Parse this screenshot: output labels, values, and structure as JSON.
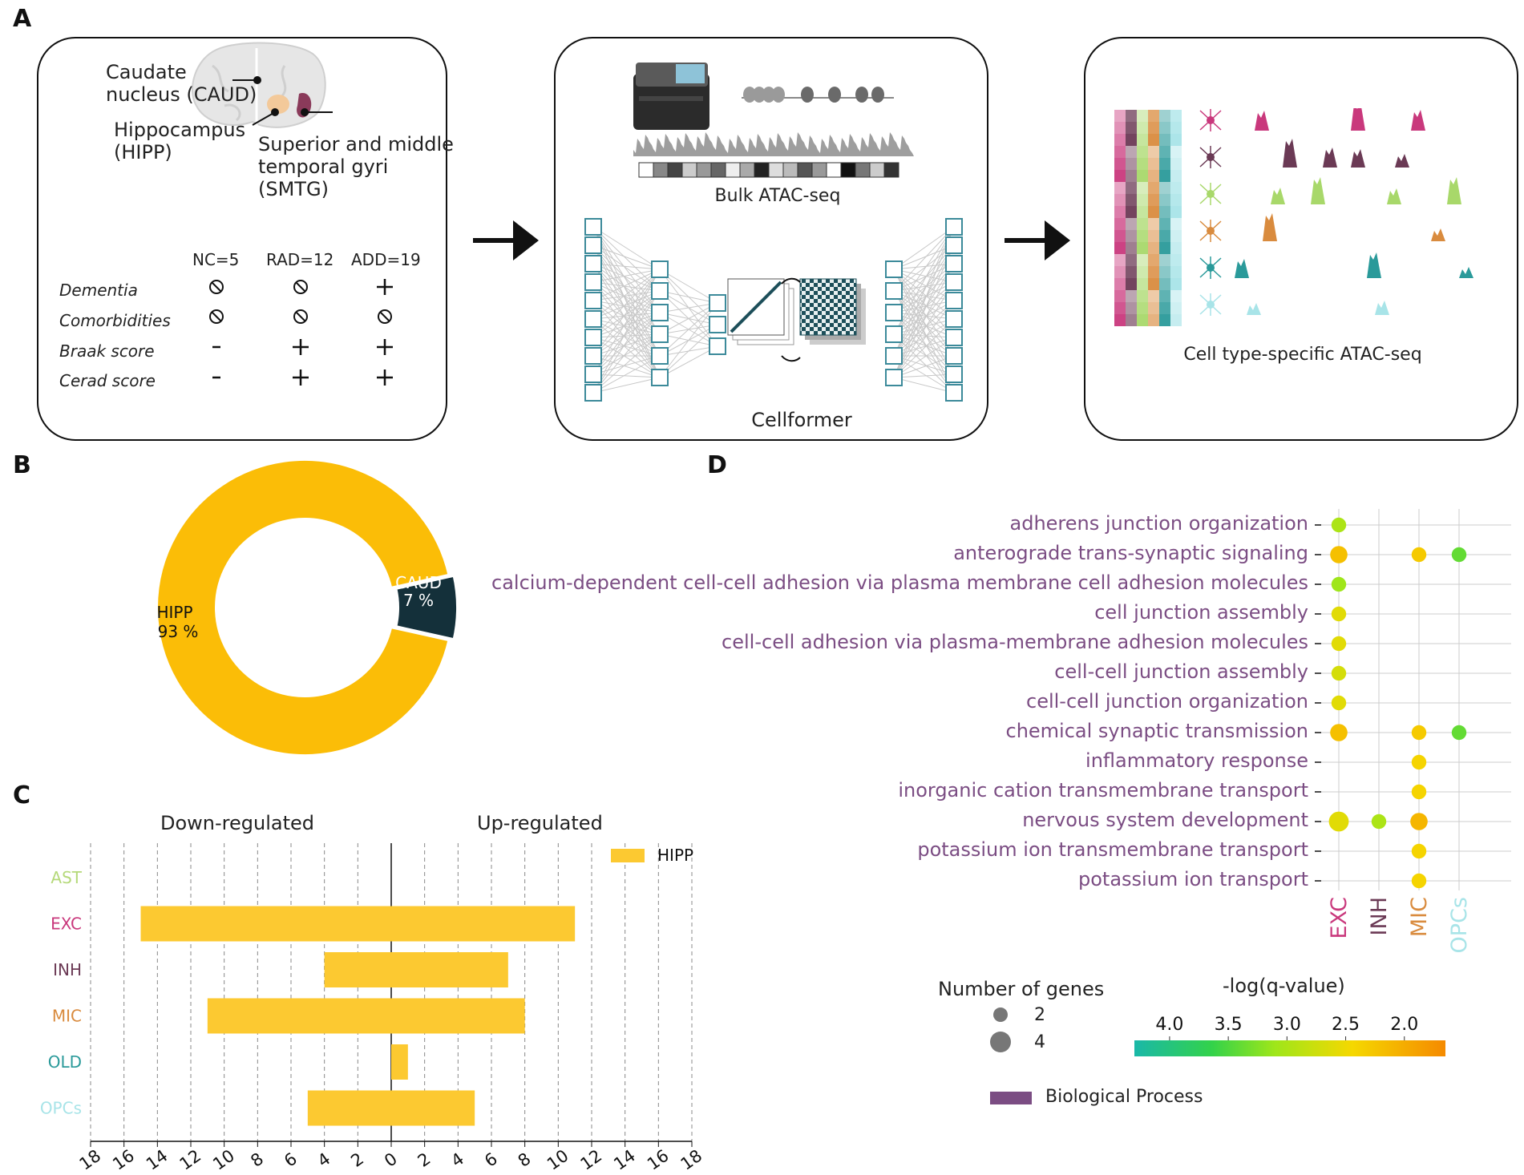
{
  "panel_letters": {
    "a": "A",
    "b": "B",
    "c": "C",
    "d": "D"
  },
  "panel_a": {
    "regions": [
      {
        "label": "Caudate\nnucleus (CAUD)",
        "color": "#1d3a45"
      },
      {
        "label": "Hippocampus\n(HIPP)",
        "color": "#f5b800"
      },
      {
        "label": "Superior and middle\ntemporal gyri\n(SMTG)",
        "color": "#7a2350"
      }
    ],
    "table": {
      "headers": [
        "NC=5",
        "RAD=12",
        "ADD=19"
      ],
      "rows": [
        {
          "label": "Dementia",
          "cells": [
            "⃠",
            "⃠",
            "+"
          ]
        },
        {
          "label": "Comorbidities",
          "cells": [
            "⃠",
            "⃠",
            "⃠"
          ]
        },
        {
          "label": "Braak score",
          "cells": [
            "-",
            "+",
            "+"
          ]
        },
        {
          "label": "Cerad score",
          "cells": [
            "-",
            "+",
            "+"
          ]
        }
      ]
    },
    "bulk_caption": "Bulk ATAC-seq",
    "model_caption": "Cellformer",
    "celltype_caption": "Cell type-specific ATAC-seq",
    "celltype_colors": [
      "#c9387c",
      "#6b3a55",
      "#a8d86a",
      "#d98b3e",
      "#2a9a9a",
      "#a8e4e8"
    ]
  },
  "panel_b": {
    "chart_data": {
      "type": "pie",
      "title": "",
      "slices": [
        {
          "label": "HIPP",
          "value": 93,
          "text": "93 %",
          "color": "#fbbd07"
        },
        {
          "label": "CAUD",
          "value": 7,
          "text": "7 %",
          "color": "#14303a"
        }
      ]
    }
  },
  "panel_c": {
    "chart_data": {
      "type": "bar",
      "orientation": "horizontal-diverging",
      "categories": [
        "AST",
        "EXC",
        "INH",
        "MIC",
        "OLD",
        "OPCs"
      ],
      "category_colors": [
        "#b5d97a",
        "#c9387c",
        "#6b3a55",
        "#d98b3e",
        "#2a9a9a",
        "#a8e4e8"
      ],
      "series": [
        {
          "name": "HIPP",
          "color": "#fcc931",
          "down": [
            0,
            15,
            4,
            11,
            0,
            5
          ],
          "up": [
            0,
            11,
            7,
            8,
            1,
            5
          ]
        }
      ],
      "xlim": [
        -18,
        18
      ],
      "tick_labels": [
        "18",
        "16",
        "14",
        "12",
        "10",
        "8",
        "6",
        "4",
        "2",
        "0",
        "2",
        "4",
        "6",
        "8",
        "10",
        "12",
        "14",
        "16",
        "18"
      ],
      "left_title": "Down-regulated",
      "right_title": "Up-regulated",
      "legend": "HIPP"
    }
  },
  "panel_d": {
    "chart_data": {
      "type": "scatter",
      "subtype": "dot-plot",
      "terms": [
        "adherens junction organization",
        "anterograde trans-synaptic signaling",
        "calcium-dependent cell-cell adhesion via plasma membrane cell adhesion molecules",
        "cell junction assembly",
        "cell-cell adhesion via plasma-membrane adhesion molecules",
        "cell-cell junction assembly",
        "cell-cell junction organization",
        "chemical synaptic transmission",
        "inflammatory response",
        "inorganic cation transmembrane transport",
        "nervous system development",
        "potassium ion transmembrane transport",
        "potassium ion transport"
      ],
      "cell_types": [
        "EXC",
        "INH",
        "MIC",
        "OPCs"
      ],
      "cell_type_colors": [
        "#c9387c",
        "#6b3a55",
        "#d98b3e",
        "#a8e4e8"
      ],
      "term_color": "#7b4d83",
      "points": [
        {
          "term": 0,
          "cell": 0,
          "genes": 2,
          "neglogq": 3.0
        },
        {
          "term": 1,
          "cell": 0,
          "genes": 3,
          "neglogq": 2.2
        },
        {
          "term": 1,
          "cell": 2,
          "genes": 2,
          "neglogq": 2.3
        },
        {
          "term": 1,
          "cell": 3,
          "genes": 2,
          "neglogq": 3.4
        },
        {
          "term": 2,
          "cell": 0,
          "genes": 2,
          "neglogq": 3.1
        },
        {
          "term": 3,
          "cell": 0,
          "genes": 2,
          "neglogq": 2.6
        },
        {
          "term": 4,
          "cell": 0,
          "genes": 2,
          "neglogq": 2.6
        },
        {
          "term": 5,
          "cell": 0,
          "genes": 2,
          "neglogq": 2.7
        },
        {
          "term": 6,
          "cell": 0,
          "genes": 2,
          "neglogq": 2.6
        },
        {
          "term": 7,
          "cell": 0,
          "genes": 3,
          "neglogq": 2.2
        },
        {
          "term": 7,
          "cell": 2,
          "genes": 2,
          "neglogq": 2.3
        },
        {
          "term": 7,
          "cell": 3,
          "genes": 2,
          "neglogq": 3.4
        },
        {
          "term": 8,
          "cell": 2,
          "genes": 2,
          "neglogq": 2.4
        },
        {
          "term": 9,
          "cell": 2,
          "genes": 2,
          "neglogq": 2.4
        },
        {
          "term": 10,
          "cell": 0,
          "genes": 4,
          "neglogq": 2.6
        },
        {
          "term": 10,
          "cell": 1,
          "genes": 2,
          "neglogq": 3.0
        },
        {
          "term": 10,
          "cell": 2,
          "genes": 3,
          "neglogq": 2.1
        },
        {
          "term": 11,
          "cell": 2,
          "genes": 2,
          "neglogq": 2.4
        },
        {
          "term": 12,
          "cell": 2,
          "genes": 2,
          "neglogq": 2.4
        }
      ],
      "size_legend_title": "Number of genes",
      "size_legend": [
        {
          "label": "2",
          "value": 2
        },
        {
          "label": "4",
          "value": 4
        }
      ],
      "color_legend_title": "-log(q-value)",
      "color_ticks": [
        "4.0",
        "3.5",
        "3.0",
        "2.5",
        "2.0"
      ],
      "color_range": [
        4.3,
        1.65
      ],
      "category_legend": "Biological Process",
      "category_color": "#7b4d83"
    }
  }
}
